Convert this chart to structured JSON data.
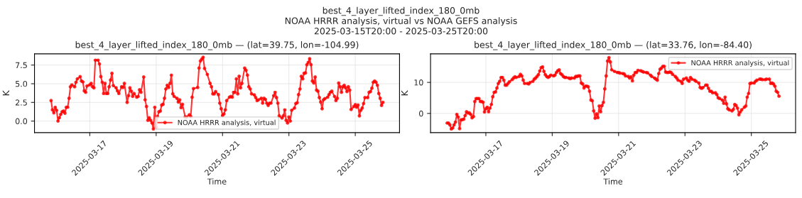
{
  "chart_data": [
    {
      "type": "line",
      "title": "best_4_layer_lifted_index_180_0mb — (lat=39.75, lon=-104.99)",
      "annotations": [
        "best_4_layer_lifted_index_180_0mb",
        "NOAA HRRR analysis, virtual vs NOAA GEFS analysis",
        "2025-03-15T20:00 - 2025-03-25T20:00"
      ],
      "xlabel": "Time",
      "ylabel": "K",
      "xlim": [
        "2025-03-15T08:00",
        "2025-03-26T08:00"
      ],
      "xticks": [
        "2025-03-17",
        "2025-03-19",
        "2025-03-21",
        "2025-03-23",
        "2025-03-25"
      ],
      "ylim": [
        -1.55,
        9.0
      ],
      "yticks": [
        {
          "value": 0,
          "label": "0.0"
        },
        {
          "value": 2.5,
          "label": "2.5"
        },
        {
          "value": 5,
          "label": "5.0"
        },
        {
          "value": 7.5,
          "label": "7.5"
        }
      ],
      "grid": true,
      "legend": "bottom",
      "marker": "circle",
      "line_style": "solid",
      "series": [
        {
          "name": "NOAA HRRR analysis, virtual",
          "color": "#ff0000",
          "x": [
            "2025-03-15T20:00",
            "2025-03-15T21:00",
            "2025-03-15T22:00",
            "2025-03-15T23:00",
            "2025-03-16T00:00",
            "2025-03-16T01:00",
            "2025-03-16T02:00",
            "2025-03-16T03:00",
            "2025-03-16T04:00",
            "2025-03-16T05:00",
            "2025-03-16T06:00",
            "2025-03-16T07:00",
            "2025-03-16T08:00",
            "2025-03-16T09:00",
            "2025-03-16T10:00",
            "2025-03-16T11:00",
            "2025-03-16T13:00",
            "2025-03-16T14:00",
            "2025-03-16T15:00",
            "2025-03-16T17:00",
            "2025-03-16T18:00",
            "2025-03-16T19:00",
            "2025-03-16T20:00",
            "2025-03-16T21:00",
            "2025-03-16T22:00",
            "2025-03-17T00:00",
            "2025-03-17T01:00",
            "2025-03-17T02:00",
            "2025-03-17T03:00",
            "2025-03-17T04:00",
            "2025-03-17T06:00",
            "2025-03-17T07:00",
            "2025-03-17T08:00",
            "2025-03-17T09:00",
            "2025-03-17T10:00",
            "2025-03-17T11:00",
            "2025-03-17T12:00",
            "2025-03-17T13:00",
            "2025-03-17T14:00",
            "2025-03-17T15:00",
            "2025-03-17T16:00",
            "2025-03-17T17:00",
            "2025-03-17T19:00",
            "2025-03-17T20:00",
            "2025-03-17T21:00",
            "2025-03-17T23:00",
            "2025-03-18T00:00",
            "2025-03-18T01:00",
            "2025-03-18T03:00",
            "2025-03-18T04:00",
            "2025-03-18T05:00",
            "2025-03-18T06:00",
            "2025-03-18T07:00",
            "2025-03-18T08:00",
            "2025-03-18T10:00",
            "2025-03-18T11:00",
            "2025-03-18T12:00",
            "2025-03-18T13:00",
            "2025-03-18T15:00",
            "2025-03-18T16:00",
            "2025-03-18T17:00",
            "2025-03-18T18:00",
            "2025-03-18T19:00",
            "2025-03-18T20:00",
            "2025-03-18T21:00",
            "2025-03-18T22:00",
            "2025-03-18T23:00",
            "2025-03-19T00:00",
            "2025-03-19T01:00",
            "2025-03-19T02:00",
            "2025-03-19T03:00",
            "2025-03-19T04:00",
            "2025-03-19T05:00",
            "2025-03-19T06:00",
            "2025-03-19T07:00",
            "2025-03-19T08:00",
            "2025-03-19T09:00",
            "2025-03-19T10:00",
            "2025-03-19T11:00",
            "2025-03-19T12:00",
            "2025-03-19T13:00",
            "2025-03-19T15:00",
            "2025-03-19T16:00",
            "2025-03-19T17:00",
            "2025-03-19T18:00",
            "2025-03-19T19:00",
            "2025-03-19T21:00",
            "2025-03-19T22:00",
            "2025-03-20T00:00",
            "2025-03-20T01:00",
            "2025-03-20T02:00",
            "2025-03-20T03:00",
            "2025-03-20T06:00",
            "2025-03-20T07:00",
            "2025-03-20T08:00",
            "2025-03-20T09:00",
            "2025-03-20T10:00",
            "2025-03-20T11:00",
            "2025-03-20T13:00",
            "2025-03-20T15:00",
            "2025-03-20T16:00",
            "2025-03-20T17:00",
            "2025-03-20T18:00",
            "2025-03-20T19:00",
            "2025-03-20T21:00",
            "2025-03-20T22:00",
            "2025-03-20T23:00",
            "2025-03-21T00:00",
            "2025-03-21T01:00",
            "2025-03-21T02:00",
            "2025-03-21T03:00",
            "2025-03-21T05:00",
            "2025-03-21T06:00",
            "2025-03-21T07:00",
            "2025-03-21T08:00",
            "2025-03-21T09:00",
            "2025-03-21T10:00",
            "2025-03-21T11:00",
            "2025-03-21T12:00",
            "2025-03-21T13:00",
            "2025-03-21T14:00",
            "2025-03-21T16:00",
            "2025-03-21T17:00",
            "2025-03-21T18:00",
            "2025-03-21T19:00",
            "2025-03-21T20:00",
            "2025-03-21T21:00",
            "2025-03-21T23:00",
            "2025-03-22T00:00",
            "2025-03-22T01:00",
            "2025-03-22T02:00",
            "2025-03-22T04:00",
            "2025-03-22T05:00",
            "2025-03-22T06:00",
            "2025-03-22T07:00",
            "2025-03-22T08:00",
            "2025-03-22T09:00",
            "2025-03-22T10:00",
            "2025-03-22T11:00",
            "2025-03-22T13:00",
            "2025-03-22T14:00",
            "2025-03-22T15:00",
            "2025-03-22T16:00",
            "2025-03-22T17:00",
            "2025-03-22T19:00",
            "2025-03-22T20:00",
            "2025-03-22T21:00",
            "2025-03-22T22:00",
            "2025-03-22T23:00",
            "2025-03-23T00:00",
            "2025-03-23T01:00",
            "2025-03-23T02:00",
            "2025-03-23T04:00",
            "2025-03-23T05:00",
            "2025-03-23T06:00",
            "2025-03-23T07:00",
            "2025-03-23T08:00",
            "2025-03-23T09:00",
            "2025-03-23T10:00",
            "2025-03-23T11:00",
            "2025-03-23T12:00",
            "2025-03-23T13:00",
            "2025-03-23T14:00",
            "2025-03-23T15:00",
            "2025-03-23T16:00",
            "2025-03-23T17:00",
            "2025-03-23T18:00",
            "2025-03-23T19:00",
            "2025-03-23T20:00",
            "2025-03-23T21:00",
            "2025-03-23T22:00",
            "2025-03-23T23:00",
            "2025-03-24T00:00",
            "2025-03-24T01:00",
            "2025-03-24T02:00",
            "2025-03-24T04:00",
            "2025-03-24T05:00",
            "2025-03-24T06:00",
            "2025-03-24T07:00",
            "2025-03-24T09:00",
            "2025-03-24T10:00",
            "2025-03-24T11:00",
            "2025-03-24T12:00",
            "2025-03-24T13:00",
            "2025-03-24T14:00",
            "2025-03-24T15:00",
            "2025-03-24T16:00",
            "2025-03-24T17:00",
            "2025-03-24T18:00",
            "2025-03-24T19:00",
            "2025-03-24T20:00",
            "2025-03-24T21:00",
            "2025-03-24T23:00",
            "2025-03-25T00:00",
            "2025-03-25T01:00",
            "2025-03-25T02:00",
            "2025-03-25T03:00",
            "2025-03-25T04:00",
            "2025-03-25T05:00",
            "2025-03-25T06:00",
            "2025-03-25T07:00",
            "2025-03-25T09:00",
            "2025-03-25T10:00",
            "2025-03-25T11:00",
            "2025-03-25T12:00",
            "2025-03-25T13:00",
            "2025-03-25T14:00",
            "2025-03-25T15:00",
            "2025-03-25T16:00",
            "2025-03-25T17:00",
            "2025-03-25T18:00",
            "2025-03-25T19:00",
            "2025-03-25T20:00"
          ],
          "values": [
            2.75,
            1.5,
            1.1,
            1.85,
            1.45,
            0.0,
            0.45,
            0.9,
            1.25,
            1.35,
            1.05,
            1.85,
            1.85,
            3.05,
            4.6,
            4.85,
            4.6,
            5.2,
            5.65,
            5.95,
            5.35,
            5.25,
            4.05,
            3.85,
            4.7,
            4.85,
            5.05,
            4.6,
            4.45,
            8.15,
            8.15,
            7.65,
            5.95,
            5.2,
            3.7,
            5.05,
            3.7,
            3.7,
            4.6,
            5.5,
            6.4,
            4.75,
            4.45,
            4.05,
            3.7,
            4.6,
            4.5,
            5.05,
            2.5,
            3.4,
            4.45,
            4.0,
            3.3,
            3.7,
            3.2,
            3.3,
            4.2,
            3.85,
            5.9,
            2.85,
            1.95,
            0.1,
            0.45,
            0.1,
            -0.25,
            -1.05,
            1.85,
            -0.85,
            0.6,
            1.25,
            1.35,
            2.15,
            2.25,
            3.05,
            4.3,
            4.8,
            4.5,
            5.05,
            6.15,
            3.65,
            3.3,
            3.05,
            2.55,
            2.85,
            1.8,
            2.25,
            0.55,
            0.55,
            0.85,
            0.6,
            3.2,
            4.35,
            4.5,
            7.1,
            8.05,
            8.3,
            8.55,
            7.05,
            6.25,
            5.05,
            4.6,
            3.65,
            3.65,
            3.95,
            3.55,
            2.4,
            1.65,
            0.75,
            0.95,
            1.5,
            2.75,
            3.2,
            3.3,
            3.2,
            3.85,
            3.85,
            5.65,
            3.65,
            6.0,
            4.45,
            5.05,
            7.1,
            6.8,
            6.15,
            4.6,
            4.3,
            3.65,
            3.5,
            3.15,
            2.75,
            2.85,
            3.05,
            2.4,
            3.05,
            2.9,
            2.4,
            2.1,
            2.4,
            2.4,
            3.4,
            3.85,
            3.15,
            2.4,
            0.7,
            0.4,
            0.7,
            1.5,
            0.1,
            -0.25,
            0.55,
            0.0,
            1.45,
            1.75,
            2.35,
            2.45,
            3.55,
            4.3,
            6.0,
            5.65,
            6.4,
            6.45,
            7.55,
            7.85,
            8.35,
            7.55,
            5.35,
            5.1,
            5.9,
            4.15,
            4.0,
            3.15,
            2.55,
            1.65,
            2.85,
            3.0,
            3.2,
            3.55,
            3.85,
            4.0,
            3.3,
            2.75,
            3.05,
            5.1,
            4.6,
            3.85,
            4.6,
            4.8,
            4.45,
            3.95,
            4.6,
            4.15,
            1.55,
            1.95,
            2.2,
            1.85,
            2.15,
            0.7,
            1.45,
            1.75,
            2.35,
            3.15,
            3.15,
            3.85,
            3.95,
            4.4,
            5.2,
            5.35,
            5.2,
            4.8,
            3.7,
            3.05,
            2.1,
            2.5
          ]
        }
      ]
    },
    {
      "type": "line",
      "title": "best_4_layer_lifted_index_180_0mb — (lat=33.76, lon=-84.40)",
      "xlabel": "Time",
      "ylabel": "K",
      "xlim": [
        "2025-03-15T08:00",
        "2025-03-26T08:00"
      ],
      "xticks": [
        "2025-03-17",
        "2025-03-19",
        "2025-03-21",
        "2025-03-23",
        "2025-03-25"
      ],
      "ylim": [
        -6.2,
        19.2
      ],
      "yticks": [
        0,
        10
      ],
      "grid": true,
      "legend": "top right",
      "marker": "circle",
      "line_style": "solid",
      "series": [
        {
          "name": "NOAA HRRR analysis, virtual",
          "color": "#ff0000",
          "x": [
            "2025-03-15T20:00",
            "2025-03-15T21:00",
            "2025-03-15T22:00",
            "2025-03-15T23:00",
            "2025-03-16T00:00",
            "2025-03-16T01:00",
            "2025-03-16T02:00",
            "2025-03-16T03:00",
            "2025-03-16T04:00",
            "2025-03-16T05:00",
            "2025-03-16T06:00",
            "2025-03-16T07:00",
            "2025-03-16T08:00",
            "2025-03-16T09:00",
            "2025-03-16T10:00",
            "2025-03-16T11:00",
            "2025-03-16T12:00",
            "2025-03-16T13:00",
            "2025-03-16T14:00",
            "2025-03-16T15:00",
            "2025-03-16T16:00",
            "2025-03-16T17:00",
            "2025-03-16T18:00",
            "2025-03-16T19:00",
            "2025-03-16T20:00",
            "2025-03-16T21:00",
            "2025-03-16T22:00",
            "2025-03-16T23:00",
            "2025-03-17T00:00",
            "2025-03-17T01:00",
            "2025-03-17T02:00",
            "2025-03-17T03:00",
            "2025-03-17T04:00",
            "2025-03-17T05:00",
            "2025-03-17T06:00",
            "2025-03-17T07:00",
            "2025-03-17T08:00",
            "2025-03-17T09:00",
            "2025-03-17T10:00",
            "2025-03-17T11:00",
            "2025-03-17T12:00",
            "2025-03-17T13:00",
            "2025-03-17T14:00",
            "2025-03-17T15:00",
            "2025-03-17T16:00",
            "2025-03-17T17:00",
            "2025-03-17T19:00",
            "2025-03-17T20:00",
            "2025-03-17T21:00",
            "2025-03-17T22:00",
            "2025-03-18T00:00",
            "2025-03-18T01:00",
            "2025-03-18T02:00",
            "2025-03-18T03:00",
            "2025-03-18T04:00",
            "2025-03-18T06:00",
            "2025-03-18T07:00",
            "2025-03-18T08:00",
            "2025-03-18T10:00",
            "2025-03-18T11:00",
            "2025-03-18T12:00",
            "2025-03-18T13:00",
            "2025-03-18T14:00",
            "2025-03-18T15:00",
            "2025-03-18T16:00",
            "2025-03-18T17:00",
            "2025-03-18T18:00",
            "2025-03-18T19:00",
            "2025-03-18T20:00",
            "2025-03-18T21:00",
            "2025-03-18T22:00",
            "2025-03-18T23:00",
            "2025-03-19T01:00",
            "2025-03-19T02:00",
            "2025-03-19T03:00",
            "2025-03-19T04:00",
            "2025-03-19T05:00",
            "2025-03-19T06:00",
            "2025-03-19T07:00",
            "2025-03-19T08:00",
            "2025-03-19T09:00",
            "2025-03-19T10:00",
            "2025-03-19T12:00",
            "2025-03-19T13:00",
            "2025-03-19T14:00",
            "2025-03-19T16:00",
            "2025-03-19T17:00",
            "2025-03-19T18:00",
            "2025-03-19T19:00",
            "2025-03-19T20:00",
            "2025-03-19T21:00",
            "2025-03-19T22:00",
            "2025-03-19T23:00",
            "2025-03-20T00:00",
            "2025-03-20T01:00",
            "2025-03-20T02:00",
            "2025-03-20T03:00",
            "2025-03-20T04:00",
            "2025-03-20T05:00",
            "2025-03-20T06:00",
            "2025-03-20T07:00",
            "2025-03-20T08:00",
            "2025-03-20T09:00",
            "2025-03-20T10:00",
            "2025-03-20T11:00",
            "2025-03-20T12:00",
            "2025-03-20T13:00",
            "2025-03-20T14:00",
            "2025-03-20T15:00",
            "2025-03-20T16:00",
            "2025-03-20T17:00",
            "2025-03-20T18:00",
            "2025-03-20T19:00",
            "2025-03-20T21:00",
            "2025-03-20T23:00",
            "2025-03-21T00:00",
            "2025-03-21T01:00",
            "2025-03-21T03:00",
            "2025-03-21T04:00",
            "2025-03-21T05:00",
            "2025-03-21T07:00",
            "2025-03-21T08:00",
            "2025-03-21T09:00",
            "2025-03-21T10:00",
            "2025-03-21T11:00",
            "2025-03-21T12:00",
            "2025-03-21T13:00",
            "2025-03-21T14:00",
            "2025-03-21T16:00",
            "2025-03-21T17:00",
            "2025-03-21T18:00",
            "2025-03-21T20:00",
            "2025-03-21T21:00",
            "2025-03-21T23:00",
            "2025-03-22T00:00",
            "2025-03-22T02:00",
            "2025-03-22T03:00",
            "2025-03-22T04:00",
            "2025-03-22T05:00",
            "2025-03-22T06:00",
            "2025-03-22T07:00",
            "2025-03-22T08:00",
            "2025-03-22T09:00",
            "2025-03-22T10:00",
            "2025-03-22T11:00",
            "2025-03-22T12:00",
            "2025-03-22T13:00",
            "2025-03-22T14:00",
            "2025-03-22T15:00",
            "2025-03-22T17:00",
            "2025-03-22T18:00",
            "2025-03-22T19:00",
            "2025-03-22T21:00",
            "2025-03-22T22:00",
            "2025-03-22T23:00",
            "2025-03-23T01:00",
            "2025-03-23T02:00",
            "2025-03-23T03:00",
            "2025-03-23T04:00",
            "2025-03-23T05:00",
            "2025-03-23T07:00",
            "2025-03-23T08:00",
            "2025-03-23T10:00",
            "2025-03-23T11:00",
            "2025-03-23T12:00",
            "2025-03-23T13:00",
            "2025-03-23T15:00",
            "2025-03-23T16:00",
            "2025-03-23T17:00",
            "2025-03-23T18:00",
            "2025-03-23T19:00",
            "2025-03-23T20:00",
            "2025-03-23T22:00",
            "2025-03-23T23:00",
            "2025-03-24T00:00",
            "2025-03-24T01:00",
            "2025-03-24T03:00",
            "2025-03-24T04:00",
            "2025-03-24T05:00",
            "2025-03-24T06:00",
            "2025-03-24T07:00",
            "2025-03-24T08:00",
            "2025-03-24T10:00",
            "2025-03-24T11:00",
            "2025-03-24T12:00",
            "2025-03-24T13:00",
            "2025-03-24T14:00",
            "2025-03-24T15:00",
            "2025-03-24T16:00",
            "2025-03-24T17:00",
            "2025-03-24T19:00",
            "2025-03-24T20:00",
            "2025-03-24T21:00",
            "2025-03-24T22:00",
            "2025-03-24T23:00",
            "2025-03-25T00:00",
            "2025-03-25T02:00",
            "2025-03-25T03:00",
            "2025-03-25T04:00",
            "2025-03-25T06:00",
            "2025-03-25T07:00",
            "2025-03-25T08:00",
            "2025-03-25T10:00",
            "2025-03-25T11:00",
            "2025-03-25T13:00",
            "2025-03-25T14:00",
            "2025-03-25T15:00",
            "2025-03-25T16:00",
            "2025-03-25T17:00",
            "2025-03-25T18:00",
            "2025-03-25T19:00",
            "2025-03-25T20:00"
          ],
          "values": [
            -3.1,
            -3.1,
            -3.7,
            -5.0,
            -4.7,
            -3.7,
            -2.8,
            -0.3,
            -1.15,
            -4.9,
            -2.1,
            -2.0,
            -1.85,
            -0.7,
            0.55,
            0.15,
            0.2,
            -0.3,
            -1.4,
            -1.0,
            3.85,
            4.8,
            4.8,
            4.8,
            3.85,
            3.85,
            3.6,
            0.45,
            1.5,
            2.0,
            0.55,
            1.7,
            2.9,
            5.4,
            6.8,
            6.95,
            8.2,
            9.65,
            10.35,
            11.6,
            11.6,
            10.7,
            9.1,
            9.1,
            9.65,
            10.2,
            10.9,
            11.4,
            11.8,
            11.6,
            11.9,
            12.6,
            12.1,
            10.7,
            9.65,
            9.65,
            9.5,
            10.0,
            10.35,
            11.05,
            11.4,
            11.9,
            12.5,
            13.7,
            14.75,
            15.0,
            13.55,
            12.5,
            11.9,
            11.6,
            11.9,
            12.35,
            12.1,
            12.35,
            13.2,
            13.75,
            14.05,
            12.85,
            12.5,
            11.9,
            11.6,
            11.6,
            11.4,
            11.2,
            11.4,
            11.4,
            11.9,
            11.9,
            12.1,
            12.1,
            9.8,
            9.5,
            8.2,
            8.8,
            8.8,
            8.6,
            7.15,
            4.3,
            4.1,
            0.8,
            -1.55,
            -0.15,
            -1.35,
            2.4,
            0.55,
            2.55,
            3.55,
            7.9,
            12.1,
            16.9,
            18.0,
            16.6,
            14.05,
            13.55,
            13.2,
            13.2,
            13.0,
            12.85,
            12.7,
            12.1,
            11.9,
            11.4,
            11.8,
            10.5,
            12.35,
            13.2,
            13.2,
            13.9,
            13.75,
            13.55,
            13.35,
            13.2,
            13.05,
            12.35,
            11.9,
            11.4,
            11.05,
            10.7,
            12.85,
            14.25,
            14.6,
            15.2,
            15.2,
            13.35,
            13.2,
            13.2,
            13.35,
            13.2,
            12.6,
            11.9,
            11.4,
            10.7,
            10.35,
            9.65,
            11.05,
            11.4,
            10.7,
            10.35,
            11.6,
            11.05,
            10.7,
            10.35,
            9.8,
            8.35,
            8.1,
            8.35,
            9.1,
            9.1,
            8.1,
            7.15,
            7.15,
            6.65,
            6.65,
            6.1,
            5.05,
            4.8,
            4.3,
            3.25,
            5.25,
            3.1,
            1.5,
            1.15,
            0.8,
            1.3,
            2.9,
            2.55,
            1.7,
            -0.45,
            0.45,
            1.15,
            2.0,
            2.4,
            5.25,
            6.45,
            9.65,
            9.8,
            9.8,
            10.35,
            10.7,
            11.05,
            11.05,
            10.9,
            10.9,
            11.05,
            11.05,
            9.65,
            9.8,
            9.5,
            8.8,
            7.15,
            6.8,
            5.55
          ]
        }
      ]
    }
  ]
}
